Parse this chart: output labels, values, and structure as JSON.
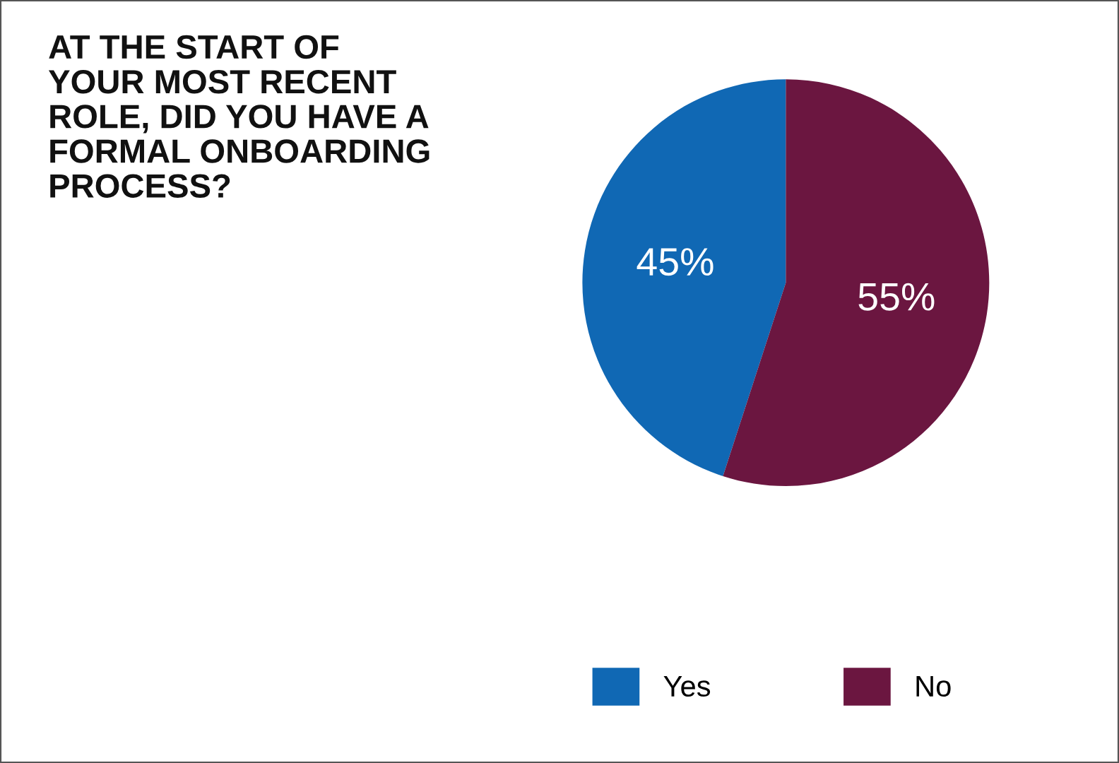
{
  "chart_data": {
    "type": "pie",
    "title": "AT THE START OF\nYOUR MOST RECENT\nROLE, DID YOU HAVE A\nFORMAL ONBOARDING\nPROCESS?",
    "categories": [
      "Yes",
      "No"
    ],
    "values": [
      45,
      55
    ],
    "colors": [
      "#1068b4",
      "#6b1640"
    ],
    "value_labels": [
      "45%",
      "55%"
    ],
    "legend": "bottom"
  }
}
